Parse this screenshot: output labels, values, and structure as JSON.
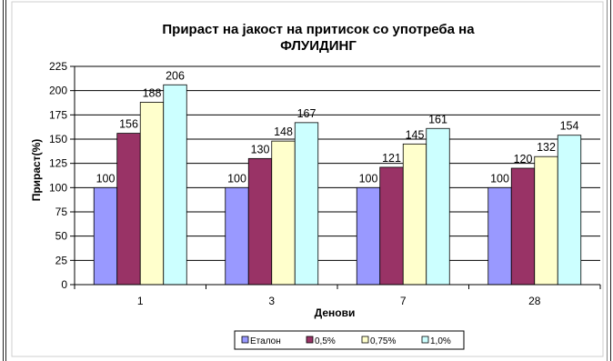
{
  "chart_data": {
    "type": "bar",
    "title_lines": [
      "Прираст на јакост на притисок со употреба на",
      "ФЛУИДИНГ"
    ],
    "xlabel": "Денови",
    "ylabel": "Прираст(%)",
    "ylim": [
      0,
      225
    ],
    "yticks": [
      0,
      25,
      50,
      75,
      100,
      125,
      150,
      175,
      200,
      225
    ],
    "grid": true,
    "legend_position": "bottom",
    "categories": [
      "1",
      "3",
      "7",
      "28"
    ],
    "series": [
      {
        "name": "Еталон",
        "color": "#9999ff",
        "values": [
          100,
          100,
          100,
          100
        ]
      },
      {
        "name": "0,5%",
        "color": "#993366",
        "values": [
          156,
          130,
          121,
          120
        ]
      },
      {
        "name": "0,75%",
        "color": "#ffffcc",
        "values": [
          188,
          148,
          145,
          132
        ]
      },
      {
        "name": "1,0%",
        "color": "#ccffff",
        "values": [
          206,
          167,
          161,
          154
        ]
      }
    ]
  }
}
